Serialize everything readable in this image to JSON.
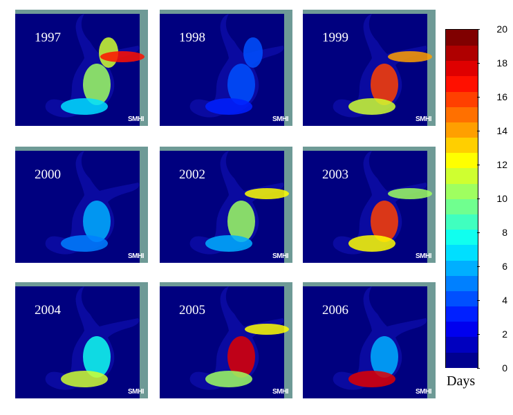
{
  "panels": [
    {
      "year": "1997",
      "credit": "SMHI",
      "hotspots": [
        [
          "north",
          0.55
        ],
        [
          "gulf",
          0.85
        ],
        [
          "central",
          0.5
        ],
        [
          "south",
          0.35
        ]
      ]
    },
    {
      "year": "1998",
      "credit": "SMHI",
      "hotspots": [
        [
          "north",
          0.2
        ],
        [
          "central",
          0.2
        ],
        [
          "south",
          0.15
        ]
      ]
    },
    {
      "year": "1999",
      "credit": "SMHI",
      "hotspots": [
        [
          "gulf",
          0.7
        ],
        [
          "central",
          0.8
        ],
        [
          "south",
          0.55
        ]
      ]
    },
    {
      "year": "2000",
      "credit": "SMHI",
      "hotspots": [
        [
          "central",
          0.3
        ],
        [
          "south",
          0.25
        ]
      ]
    },
    {
      "year": "2002",
      "credit": "SMHI",
      "hotspots": [
        [
          "gulf",
          0.6
        ],
        [
          "central",
          0.5
        ],
        [
          "south",
          0.3
        ]
      ]
    },
    {
      "year": "2003",
      "credit": "SMHI",
      "hotspots": [
        [
          "gulf",
          0.5
        ],
        [
          "central",
          0.8
        ],
        [
          "south",
          0.6
        ]
      ]
    },
    {
      "year": "2004",
      "credit": "SMHI",
      "hotspots": [
        [
          "central",
          0.4
        ],
        [
          "south",
          0.55
        ]
      ]
    },
    {
      "year": "2005",
      "credit": "SMHI",
      "hotspots": [
        [
          "gulf",
          0.6
        ],
        [
          "central",
          0.9
        ],
        [
          "south",
          0.5
        ]
      ]
    },
    {
      "year": "2006",
      "credit": "SMHI",
      "hotspots": [
        [
          "central",
          0.3
        ],
        [
          "south",
          0.9
        ]
      ]
    }
  ],
  "colorbar": {
    "label": "Days",
    "min": 0,
    "max": 20,
    "ticks": [
      "0",
      "2",
      "4",
      "6",
      "8",
      "10",
      "12",
      "14",
      "16",
      "18",
      "20"
    ],
    "colors": [
      "#00008f",
      "#0000bf",
      "#0000ef",
      "#0020ff",
      "#0050ff",
      "#0080ff",
      "#00afff",
      "#00dfff",
      "#10ffef",
      "#40ffbf",
      "#70ff8f",
      "#9fff60",
      "#cfff30",
      "#ffff00",
      "#ffcf00",
      "#ff9f00",
      "#ff7000",
      "#ff4000",
      "#ff1000",
      "#df0000",
      "#af0000",
      "#800000"
    ]
  },
  "colors": {
    "land": "#6e9a96",
    "water_base": "#0a0aa0",
    "frame_water": "#00007f"
  }
}
